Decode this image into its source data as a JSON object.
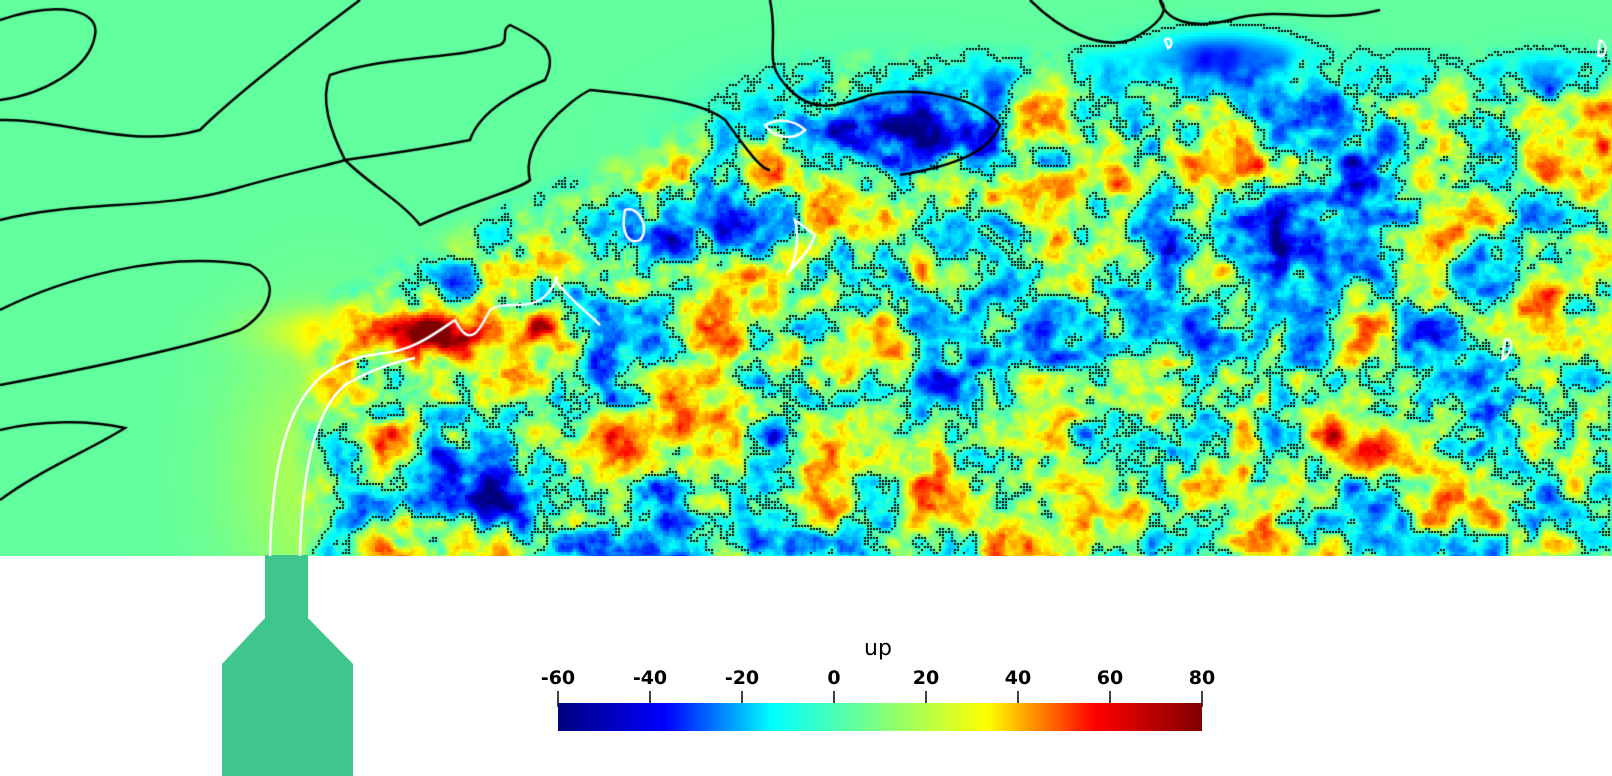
{
  "colorbar": {
    "title": "up",
    "min": -60,
    "max": 80,
    "ticks": [
      "-60",
      "-40",
      "-20",
      "0",
      "20",
      "40",
      "60",
      "80"
    ],
    "tick_values": [
      -60,
      -40,
      -20,
      0,
      20,
      40,
      60,
      80
    ],
    "colormap": "jet",
    "stops": [
      "#00007f",
      "#0000ff",
      "#00ffff",
      "#7fff7f",
      "#ffff00",
      "#ff0000",
      "#7f0000"
    ]
  },
  "colors": {
    "neutral_field": "#3fc68e",
    "nozzle": "#3fc68e",
    "contour_zero": "#000000",
    "contour_interface": "#ffffff",
    "background": "#ffffff"
  }
}
